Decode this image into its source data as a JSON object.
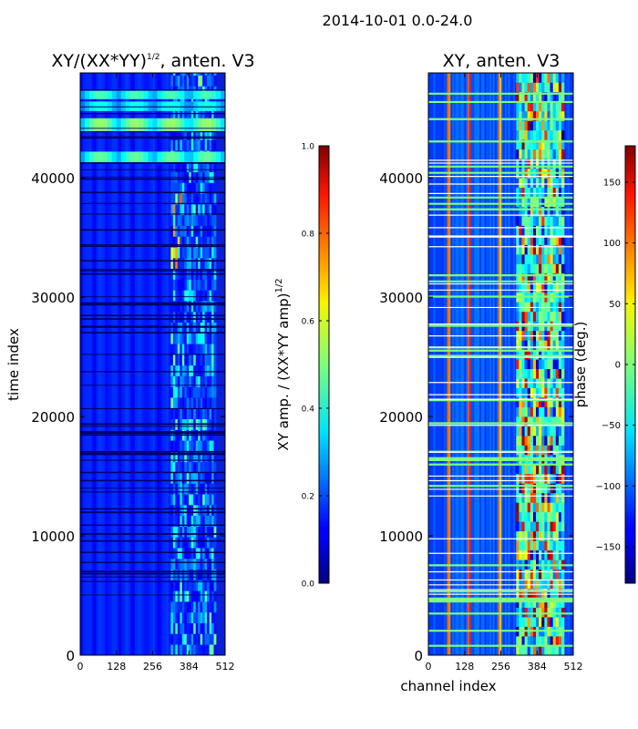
{
  "figure": {
    "suptitle": "2014-10-01 0.0-24.0"
  },
  "chart_data": [
    {
      "type": "heatmap",
      "title_main": "XY/(XX*YY)",
      "title_exp": "1/2",
      "title_tail": ", anten. V3",
      "xlabel": "",
      "ylabel": "time index",
      "xlim": [
        0,
        512
      ],
      "ylim": [
        0,
        48800
      ],
      "xticks": [
        0,
        128,
        256,
        384,
        512
      ],
      "yticks": [
        0,
        10000,
        20000,
        30000,
        40000
      ],
      "colormap": "jet",
      "colorbar": {
        "label_main": "XY amp. / (XX*YY amp)",
        "label_exp": "1/2",
        "range": [
          0.0,
          1.0
        ],
        "ticks": [
          "0.0",
          "0.2",
          "0.4",
          "0.6",
          "0.8",
          "1.0"
        ]
      },
      "bands": [
        {
          "y0": 41200,
          "y1": 42200,
          "value": 0.38
        },
        {
          "y0": 43900,
          "y1": 45000,
          "value": 0.42
        },
        {
          "y0": 45600,
          "y1": 46400,
          "value": 0.32
        },
        {
          "y0": 46600,
          "y1": 47300,
          "value": 0.36
        }
      ],
      "active_channel_range": [
        320,
        480
      ]
    },
    {
      "type": "heatmap",
      "title_main": "XY, anten. V3",
      "xlabel": "channel index",
      "ylabel": "",
      "xlim": [
        0,
        512
      ],
      "ylim": [
        0,
        48800
      ],
      "xticks": [
        0,
        128,
        256,
        384,
        512
      ],
      "yticks": [
        0,
        10000,
        20000,
        30000,
        40000
      ],
      "colormap": "jet",
      "colorbar": {
        "label_main": "phase (deg.)",
        "range": [
          -180,
          180
        ],
        "ticks": [
          "−150",
          "−100",
          "−50",
          "0",
          "50",
          "100",
          "150"
        ]
      },
      "phase_streak_channels": [
        70,
        140,
        250
      ],
      "active_channel_range": [
        310,
        480
      ]
    }
  ]
}
